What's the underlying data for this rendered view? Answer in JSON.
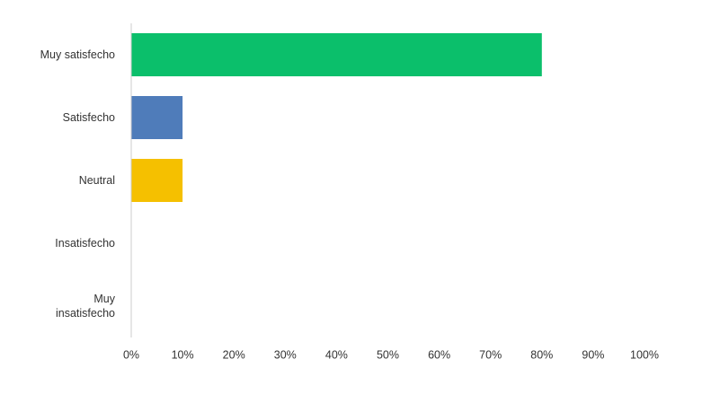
{
  "chart_data": {
    "type": "hbar",
    "categories": [
      "Muy satisfecho",
      "Satisfecho",
      "Neutral",
      "Insatisfecho",
      "Muy insatisfecho"
    ],
    "values": [
      80,
      10,
      10,
      0,
      0
    ],
    "colors": [
      "#0bbf6b",
      "#4f7cba",
      "#f5c000",
      null,
      null
    ],
    "xlim": [
      0,
      100
    ],
    "xticks": [
      {
        "value": 0,
        "label": "0%"
      },
      {
        "value": 10,
        "label": "10%"
      },
      {
        "value": 20,
        "label": "20%"
      },
      {
        "value": 30,
        "label": "30%"
      },
      {
        "value": 40,
        "label": "40%"
      },
      {
        "value": 50,
        "label": "50%"
      },
      {
        "value": 60,
        "label": "60%"
      },
      {
        "value": 70,
        "label": "70%"
      },
      {
        "value": 80,
        "label": "80%"
      },
      {
        "value": 90,
        "label": "90%"
      },
      {
        "value": 100,
        "label": "100%"
      }
    ],
    "grid": false
  }
}
